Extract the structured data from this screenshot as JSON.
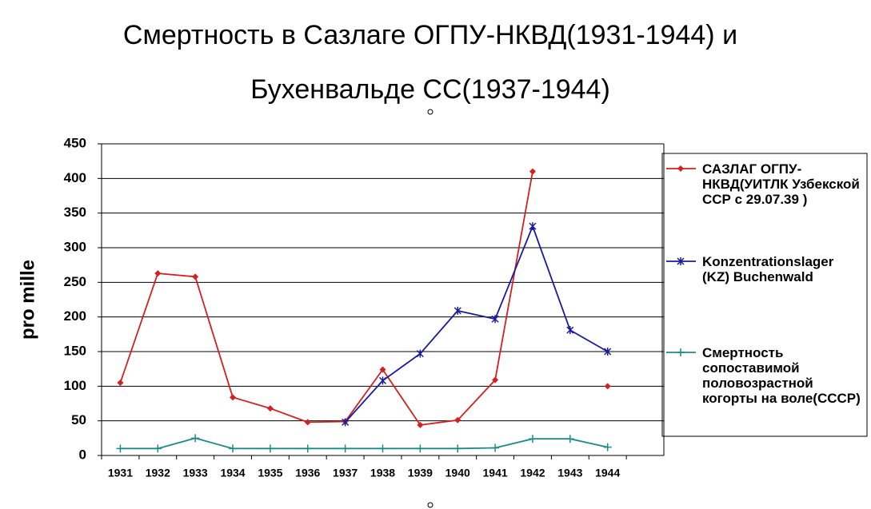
{
  "chart_data": {
    "type": "line",
    "title": [
      "Смертность в Сазлаге ОГПУ-НКВД(1931-1944) и",
      "Бухенвальде СС(1937-1944)"
    ],
    "y_label": "pro mille",
    "categories": [
      "1931",
      "1932",
      "1933",
      "1934",
      "1935",
      "1936",
      "1937",
      "1938",
      "1939",
      "1940",
      "1941",
      "1942",
      "1943",
      "1944",
      null
    ],
    "series": [
      {
        "name": "САЗЛАГ ОГПУ-НКВД(УИТЛК Узбекской ССР с 29.07.39 )",
        "color": "#d42020",
        "marker": "diamond",
        "values": [
          105,
          263,
          258,
          84,
          68,
          48,
          49,
          124,
          44,
          51,
          109,
          410,
          null,
          100,
          null
        ]
      },
      {
        "name": "Konzentrationslager (KZ) Buchenwald",
        "color": "#1a1aa0",
        "marker": "star",
        "values": [
          null,
          null,
          null,
          null,
          null,
          null,
          48,
          108,
          147,
          209,
          197,
          331,
          181,
          150,
          null
        ]
      },
      {
        "name": "Смертность сопоставимой половозрастной когорты на воле(СССР)",
        "color": "#1f8a8a",
        "marker": "plus",
        "values": [
          10,
          10,
          25,
          10,
          10,
          10,
          10,
          10,
          10,
          10,
          11,
          24,
          24,
          12,
          null
        ]
      }
    ],
    "ylim": [
      0,
      450
    ],
    "yticks": [
      0,
      50,
      100,
      150,
      200,
      250,
      300,
      350,
      400,
      450
    ],
    "grid": true,
    "legend": "right"
  }
}
